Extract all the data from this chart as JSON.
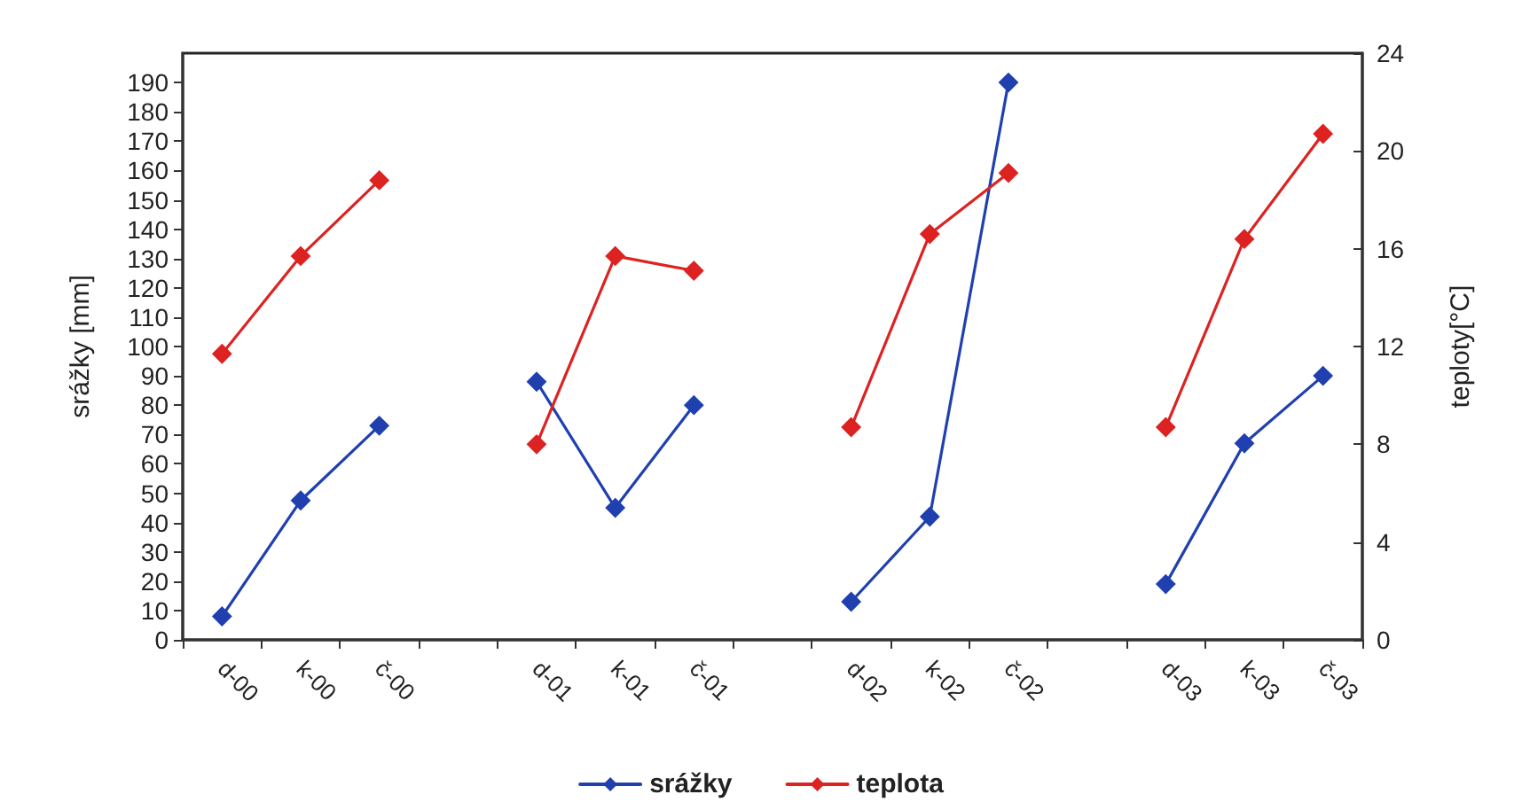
{
  "chart_data": {
    "type": "line",
    "categories": [
      "d-00",
      "k-00",
      "č-00",
      null,
      "d-01",
      "k-01",
      "č-01",
      null,
      "d-02",
      "k-02",
      "č-02",
      null,
      "d-03",
      "k-03",
      "č-03"
    ],
    "series": [
      {
        "name": "srážky",
        "color": "#2040b0",
        "values": [
          8,
          47.5,
          73,
          null,
          88,
          45,
          80,
          null,
          13,
          42,
          190,
          null,
          19,
          67,
          90
        ]
      },
      {
        "name": "teplota",
        "color": "#dd2222",
        "axis": "y2",
        "values": [
          11.7,
          15.7,
          18.8,
          null,
          8.0,
          15.7,
          15.1,
          null,
          8.7,
          16.6,
          19.1,
          null,
          8.7,
          16.4,
          20.7
        ]
      }
    ],
    "ylabel": "srážky [mm]",
    "y2label": "teploty[°C]",
    "ylim": [
      0,
      200
    ],
    "yticks": [
      0,
      10,
      20,
      30,
      40,
      50,
      60,
      70,
      80,
      90,
      100,
      110,
      120,
      130,
      140,
      150,
      160,
      170,
      180,
      190
    ],
    "y2lim": [
      0,
      24
    ],
    "y2ticks": [
      0,
      4,
      8,
      12,
      16,
      20,
      24
    ],
    "marker": "diamond",
    "line_style": "solid",
    "grid": false,
    "legend": "bottom"
  }
}
